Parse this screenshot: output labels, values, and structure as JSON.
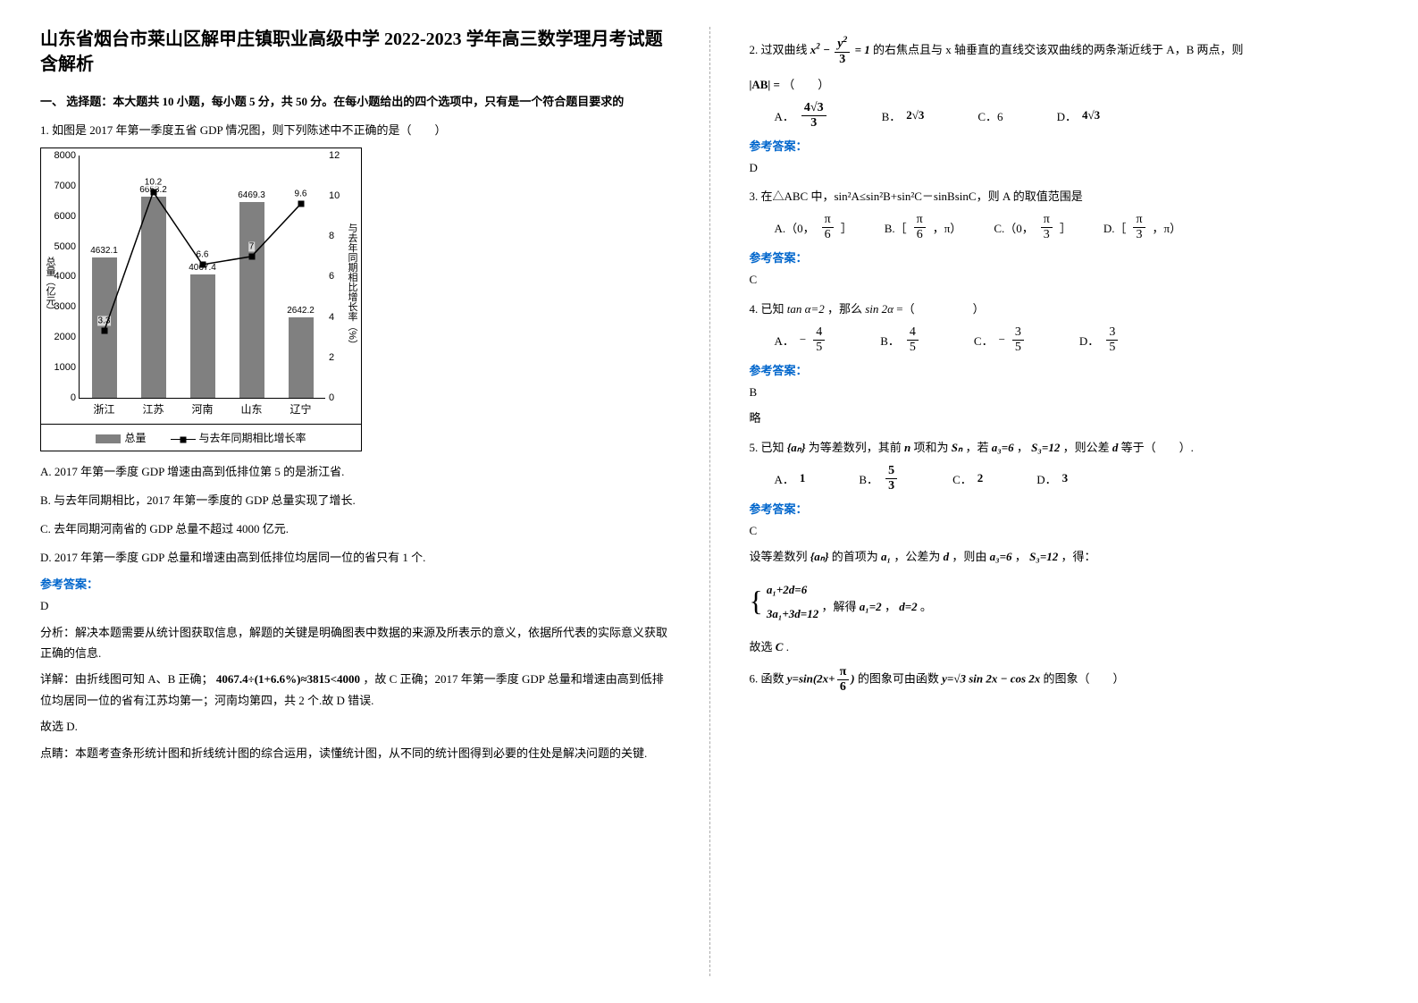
{
  "title": "山东省烟台市莱山区解甲庄镇职业高级中学 2022-2023 学年高三数学理月考试题含解析",
  "section1": "一、 选择题：本大题共 10 小题，每小题 5 分，共 50 分。在每小题给出的四个选项中，只有是一个符合题目要求的",
  "q1": {
    "stem": "1. 如图是 2017 年第一季度五省 GDP 情况图，则下列陈述中不正确的是（　　）",
    "optA": "A. 2017 年第一季度 GDP 增速由高到低排位第 5 的是浙江省.",
    "optB": "B. 与去年同期相比，2017 年第一季度的 GDP 总量实现了增长.",
    "optC": "C. 去年同期河南省的 GDP 总量不超过 4000 亿元.",
    "optD": "D. 2017 年第一季度 GDP 总量和增速由高到低排位均居同一位的省只有 1 个.",
    "answerLabel": "参考答案：",
    "answer": "D",
    "analysis1": "分析：解决本题需要从统计图获取信息，解题的关键是明确图表中数据的来源及所表示的意义，依据所代表的实际意义获取正确的信息.",
    "analysis2_pre": "详解：由折线图可知 A、B 正确；",
    "analysis2_calc": "4067.4÷(1+6.6%)≈3815<4000",
    "analysis2_post": "，故 C 正确；2017 年第一季度 GDP 总量和增速由高到低排位均居同一位的省有江苏均第一；河南均第四，共 2 个.故 D 错误.",
    "analysis3": "故选 D.",
    "analysis4": "点睛：本题考查条形统计图和折线统计图的综合运用，读懂统计图，从不同的统计图得到必要的住处是解决问题的关键."
  },
  "chart": {
    "categories": [
      "浙江",
      "江苏",
      "河南",
      "山东",
      "辽宁"
    ],
    "bar_values": [
      4632.1,
      6653.2,
      4067.4,
      6469.3,
      2642.2
    ],
    "line_values": [
      3.3,
      10.2,
      6.6,
      7,
      9.6
    ],
    "y1_max": 8000,
    "y1_step": 1000,
    "y2_max": 12,
    "y2_step": 2,
    "bar_color": "#808080",
    "marker_color": "#000000",
    "y1_label": "总量（亿元）",
    "y2_label": "与去年同期相比增长率（%）",
    "legend_bar": "总量",
    "legend_line": "与去年同期相比增长率"
  },
  "q2": {
    "stem_pre": "2. 过双曲线",
    "eq": "x² − y²/3 = 1",
    "stem_post": "的右焦点且与 x 轴垂直的直线交该双曲线的两条渐近线于 A，B 两点，则",
    "ab": "|AB| =",
    "paren": "（　　）",
    "optA": "A．",
    "optA_val_num": "4√3",
    "optA_val_den": "3",
    "optB": "B．",
    "optB_val": "2√3",
    "optC": "C．6",
    "optD": "D．",
    "optD_val": "4√3",
    "answerLabel": "参考答案：",
    "answer": "D"
  },
  "q3": {
    "stem": "3. 在△ABC 中，sin²A≤sin²B+sin²C－sinBsinC，则 A 的取值范围是",
    "optA_pre": "A.（0，",
    "optA_post": "］",
    "optB_pre": "B.［",
    "optB_post": "，π）",
    "optC_pre": "C.（0，",
    "optC_post": "］",
    "optD_pre": "D.［",
    "optD_post": "，π）",
    "pi6_n": "π",
    "pi6_d": "6",
    "pi3_n": "π",
    "pi3_d": "3",
    "answerLabel": "参考答案：",
    "answer": "C"
  },
  "q4": {
    "stem_pre": "4. 已知",
    "tan": "tan α=2",
    "stem_mid": "，那么",
    "sin": "sin 2α",
    "stem_post": "=（　　　　　）",
    "A": "A．",
    "B": "B．",
    "C": "C．",
    "D": "D．",
    "vA_n": "4",
    "vA_d": "5",
    "vA_s": "−",
    "vB_n": "4",
    "vB_d": "5",
    "vC_n": "3",
    "vC_d": "5",
    "vC_s": "−",
    "vD_n": "3",
    "vD_d": "5",
    "answerLabel": "参考答案：",
    "answer": "B",
    "note": "略"
  },
  "q5": {
    "stem_pre": "5. 已知",
    "seq1": "{aₙ}",
    "stem_m1": "为等差数列，其前",
    "nn": "n",
    "stem_m2": "项和为",
    "Sn": "Sₙ",
    "stem_m3": "，若",
    "c1": "a₃=6",
    "c2": "，",
    "c3": "S₃=12",
    "stem_m4": "，则公差",
    "dd": "d",
    "stem_post": "等于（　　）.",
    "optA": "A．",
    "vA": "1",
    "optB": "B．",
    "vB_n": "5",
    "vB_d": "3",
    "optC": "C．",
    "vC": "2",
    "optD": "D．",
    "vD": "3",
    "answerLabel": "参考答案：",
    "answer": "C",
    "sol_pre": "设等差数列",
    "sol_seq": "{aₙ}",
    "sol_m1": "的首项为",
    "sol_a1": "a₁",
    "sol_m2": "，公差为",
    "sol_d": "d",
    "sol_m3": "，则由",
    "sol_c1": "a₃=6",
    "sol_c2": "，",
    "sol_c3": "S₃=12",
    "sol_m4": "，得：",
    "sys1": "a₁+2d=6",
    "sys2": "3a₁+3d=12",
    "sol_m5": "，解得",
    "sol_r1": "a₁=2",
    "sol_r2": "，",
    "sol_r3": "d=2",
    "sol_end": "。",
    "sol_final_pre": "故选",
    "sol_final": "C",
    "sol_final_post": "."
  },
  "q6": {
    "pre": "6. 函数",
    "f1": "y=sin(2x+",
    "pi6n": "π",
    "pi6d": "6",
    "f1b": ")",
    "mid": "的图象可由函数",
    "f2": "y=√3 sin 2x − cos 2x",
    "post": "的图象（　　）"
  }
}
